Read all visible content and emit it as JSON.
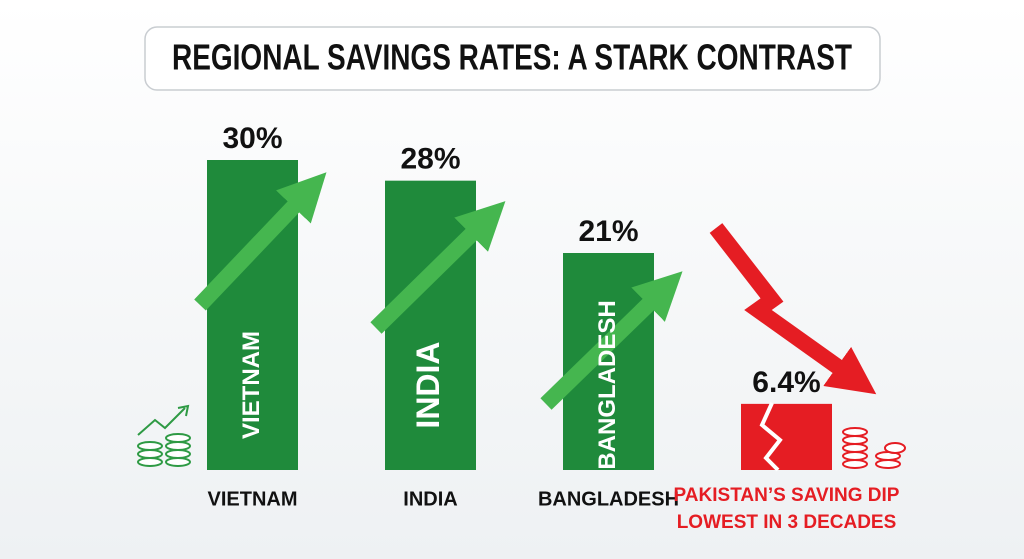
{
  "chart_data": {
    "type": "bar",
    "title": "REGIONAL SAVINGS RATES: A STARK CONTRAST",
    "categories": [
      "VIETNAM",
      "INDIA",
      "BANGLADESH",
      "PAKISTAN’S SAVING DIP"
    ],
    "annotation": "LOWEST IN 3 DECADES",
    "values": [
      30,
      28,
      21,
      6.4
    ],
    "value_labels": [
      "30%",
      "28%",
      "21%",
      "6.4%"
    ],
    "bar_labels": [
      "VIETNAM",
      "INDIA",
      "BANGLADESH",
      null
    ],
    "colors": [
      "#1f8a3b",
      "#1f8a3b",
      "#1f8a3b",
      "#e51d23"
    ],
    "label_colors": [
      "#111111",
      "#111111",
      "#111111",
      "#e51d23"
    ]
  }
}
